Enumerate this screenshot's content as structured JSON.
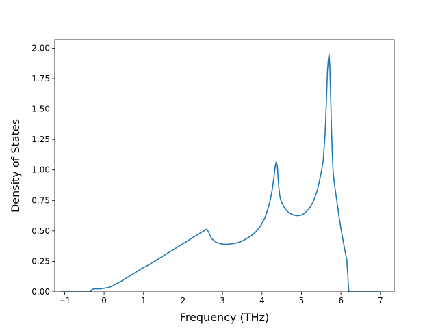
{
  "chart_data": {
    "type": "line",
    "title": "",
    "xlabel": "Frequency (THz)",
    "ylabel": "Density of States",
    "xlim": [
      -1.25,
      7.35
    ],
    "ylim": [
      0,
      2.07
    ],
    "xticks": [
      -1,
      0,
      1,
      2,
      3,
      4,
      5,
      6,
      7
    ],
    "xtick_labels": [
      "−1",
      "0",
      "1",
      "2",
      "3",
      "4",
      "5",
      "6",
      "7"
    ],
    "yticks": [
      0,
      0.25,
      0.5,
      0.75,
      1.0,
      1.25,
      1.5,
      1.75,
      2.0
    ],
    "ytick_labels": [
      "0.00",
      "0.25",
      "0.50",
      "0.75",
      "1.00",
      "1.25",
      "1.50",
      "1.75",
      "2.00"
    ],
    "grid": false,
    "legend": "none",
    "colors": {
      "line": "#1f77b4",
      "axes": "#000000",
      "background": "#ffffff"
    },
    "series": [
      {
        "x": [
          -1.1,
          -1.0,
          -0.8,
          -0.6,
          -0.45,
          -0.35,
          -0.3,
          -0.25,
          -0.2,
          -0.1,
          0.0,
          0.1,
          0.2,
          0.3,
          0.4,
          0.5,
          0.6,
          0.7,
          0.8,
          0.9,
          1.0,
          1.1,
          1.2,
          1.3,
          1.4,
          1.5,
          1.6,
          1.7,
          1.8,
          1.9,
          2.0,
          2.1,
          2.2,
          2.3,
          2.4,
          2.5,
          2.55,
          2.6,
          2.65,
          2.68,
          2.72,
          2.78,
          2.85,
          2.95,
          3.05,
          3.15,
          3.25,
          3.35,
          3.45,
          3.55,
          3.65,
          3.75,
          3.85,
          3.95,
          4.05,
          4.1,
          4.15,
          4.2,
          4.25,
          4.3,
          4.33,
          4.36,
          4.39,
          4.42,
          4.45,
          4.48,
          4.52,
          4.57,
          4.63,
          4.7,
          4.8,
          4.9,
          5.0,
          5.1,
          5.2,
          5.3,
          5.4,
          5.45,
          5.5,
          5.55,
          5.6,
          5.63,
          5.66,
          5.68,
          5.7,
          5.72,
          5.74,
          5.76,
          5.78,
          5.8,
          5.82,
          5.85,
          5.9,
          5.95,
          6.0,
          6.05,
          6.1,
          6.15,
          6.2,
          6.25,
          6.28,
          6.3,
          6.35,
          6.5,
          6.7,
          6.85,
          6.98
        ],
        "y": [
          0.0,
          0.0,
          0.0,
          0.0,
          0.0,
          0.0,
          0.02,
          0.025,
          0.025,
          0.025,
          0.03,
          0.035,
          0.045,
          0.065,
          0.08,
          0.1,
          0.12,
          0.14,
          0.16,
          0.18,
          0.2,
          0.215,
          0.235,
          0.255,
          0.275,
          0.295,
          0.315,
          0.335,
          0.355,
          0.375,
          0.395,
          0.415,
          0.435,
          0.455,
          0.475,
          0.495,
          0.505,
          0.515,
          0.49,
          0.465,
          0.44,
          0.42,
          0.405,
          0.395,
          0.39,
          0.39,
          0.395,
          0.4,
          0.41,
          0.425,
          0.445,
          0.465,
          0.495,
          0.535,
          0.59,
          0.63,
          0.68,
          0.74,
          0.82,
          0.93,
          1.02,
          1.07,
          1.03,
          0.88,
          0.79,
          0.75,
          0.72,
          0.69,
          0.665,
          0.645,
          0.63,
          0.625,
          0.63,
          0.65,
          0.685,
          0.74,
          0.83,
          0.9,
          0.98,
          1.07,
          1.3,
          1.55,
          1.82,
          1.9,
          1.95,
          1.85,
          1.6,
          1.35,
          1.15,
          1.0,
          0.93,
          0.85,
          0.74,
          0.62,
          0.52,
          0.43,
          0.34,
          0.26,
          0.0,
          0.0,
          0.0,
          0.0,
          0.0,
          0.0,
          0.0,
          0.0,
          0.0
        ]
      }
    ]
  }
}
